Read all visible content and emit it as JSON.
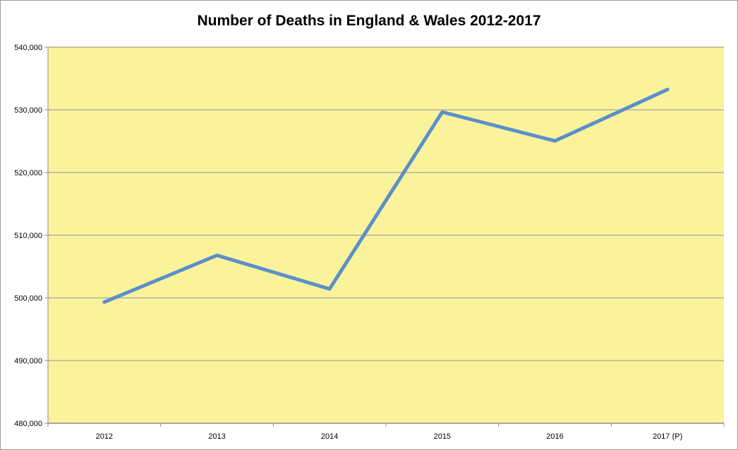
{
  "chart_data": {
    "type": "line",
    "title": "Number of Deaths in England & Wales 2012-2017",
    "xlabel": "",
    "ylabel": "",
    "categories": [
      "2012",
      "2013",
      "2014",
      "2015",
      "2016",
      "2017 (P)"
    ],
    "series": [
      {
        "values": [
          499331,
          506790,
          501424,
          529655,
          525048,
          533253
        ]
      }
    ],
    "ylim": [
      480000,
      540000
    ],
    "y_ticks": [
      "480,000",
      "490,000",
      "500,000",
      "510,000",
      "520,000",
      "530,000",
      "540,000"
    ],
    "grid": "horizontal",
    "legend": "none"
  },
  "colors": {
    "plot_background": "#faf39c",
    "line": "#5b8fc9",
    "gridline": "#c8c19a"
  }
}
